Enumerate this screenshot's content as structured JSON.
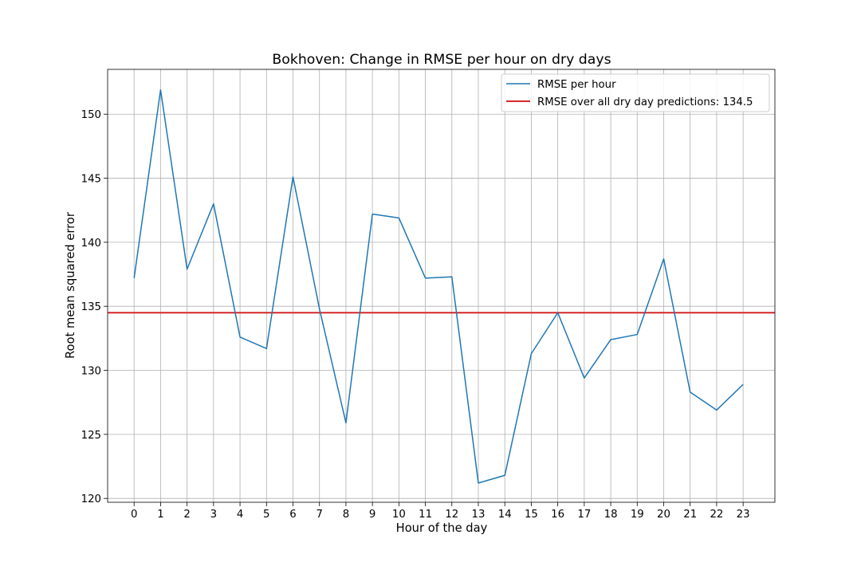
{
  "chart_data": {
    "type": "line",
    "title": "Bokhoven: Change in RMSE per hour on dry days",
    "xlabel": "Hour of the day",
    "ylabel": "Root mean squared error",
    "x": [
      0,
      1,
      2,
      3,
      4,
      5,
      6,
      7,
      8,
      9,
      10,
      11,
      12,
      13,
      14,
      15,
      16,
      17,
      18,
      19,
      20,
      21,
      22,
      23
    ],
    "x_tick_labels": [
      "0",
      "1",
      "2",
      "3",
      "4",
      "5",
      "6",
      "7",
      "8",
      "9",
      "10",
      "11",
      "12",
      "13",
      "14",
      "15",
      "16",
      "17",
      "18",
      "19",
      "20",
      "21",
      "22",
      "23"
    ],
    "xlim": [
      -1,
      24.2
    ],
    "ylim": [
      119.7,
      153.5
    ],
    "y_ticks": [
      120,
      125,
      130,
      135,
      140,
      145,
      150
    ],
    "y_tick_labels": [
      "120",
      "125",
      "130",
      "135",
      "140",
      "145",
      "150"
    ],
    "grid": true,
    "legend_position": "top-right",
    "series": [
      {
        "name": "RMSE per hour",
        "color": "#1f77b4",
        "values": [
          137.2,
          151.9,
          137.9,
          143.0,
          132.6,
          131.7,
          145.1,
          134.8,
          125.9,
          142.2,
          141.9,
          137.2,
          137.3,
          121.2,
          121.8,
          131.3,
          134.5,
          129.4,
          132.4,
          132.8,
          138.7,
          128.3,
          126.9,
          128.9
        ]
      }
    ],
    "reference_lines": [
      {
        "name": "RMSE over all dry day predictions: 134.5",
        "value": 134.5,
        "color": "#d62728"
      }
    ]
  }
}
